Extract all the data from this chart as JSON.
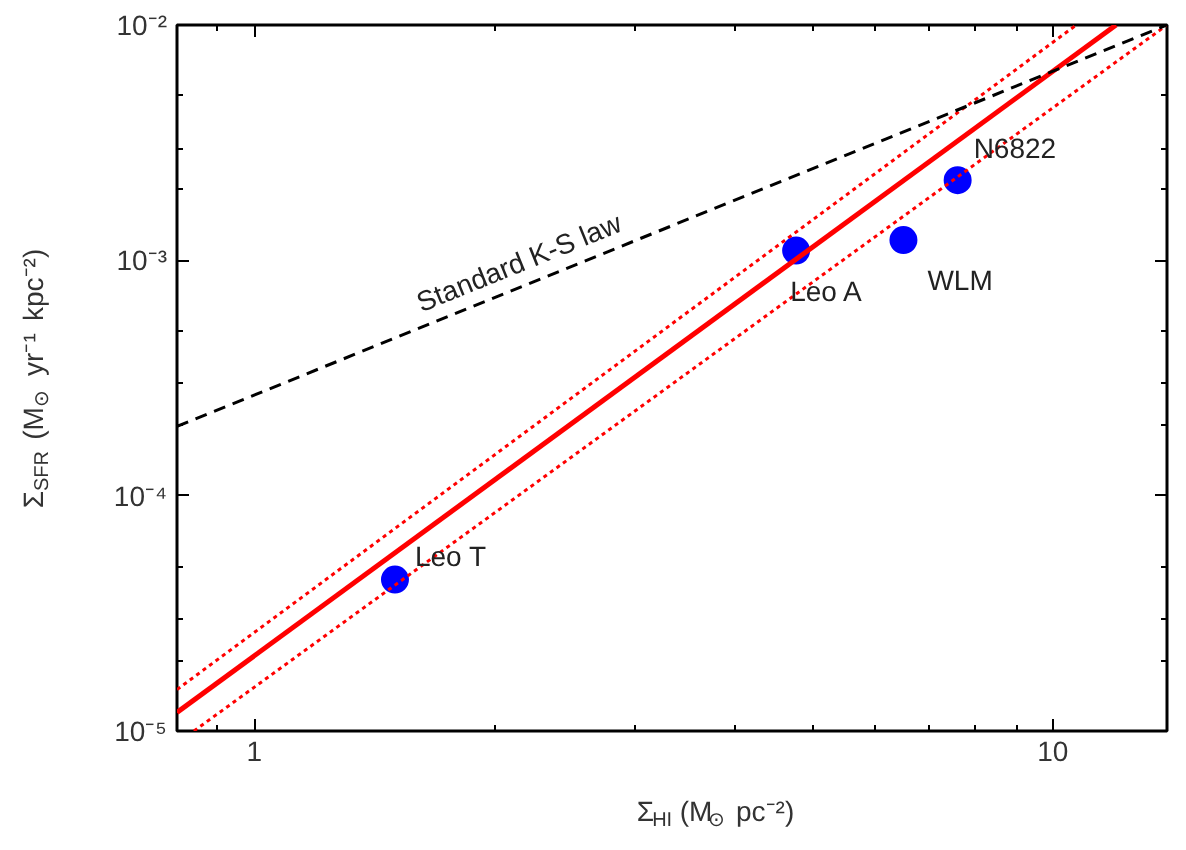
{
  "chart_data": {
    "type": "scatter",
    "xlabel": "Σ$_{HI}$ (M⊙ pc⁻²)",
    "ylabel": "Σ$_{SFR}$ (M⊙ yr⁻¹ kpc⁻²)",
    "log": "xy",
    "grid": false,
    "marker": "circle",
    "xlim": [
      0.8,
      13.9
    ],
    "ylim": [
      1e-05,
      0.01
    ],
    "xticks": [
      {
        "value": 0.8,
        "label": null
      },
      {
        "value": 0.9,
        "label": null
      },
      1,
      {
        "value": 2,
        "label": null
      },
      {
        "value": 3,
        "label": null
      },
      {
        "value": 4,
        "label": null
      },
      {
        "value": 5,
        "label": null
      },
      {
        "value": 6,
        "label": null
      },
      {
        "value": 7,
        "label": null
      },
      {
        "value": 8,
        "label": null
      },
      {
        "value": 9,
        "label": null
      },
      10
    ],
    "yticks": [
      {
        "value": 1e-05,
        "label": "10⁻⁵"
      },
      {
        "value": 2e-05,
        "label": null
      },
      {
        "value": 3e-05,
        "label": null
      },
      {
        "value": 5e-05,
        "label": null
      },
      {
        "value": 0.0001,
        "label": "10⁻⁴"
      },
      {
        "value": 0.0002,
        "label": null
      },
      {
        "value": 0.0003,
        "label": null
      },
      {
        "value": 0.0005,
        "label": null
      },
      {
        "value": 0.001,
        "label": "10⁻³"
      },
      {
        "value": 0.002,
        "label": null
      },
      {
        "value": 0.003,
        "label": null
      },
      {
        "value": 0.005,
        "label": null
      },
      {
        "value": 0.01,
        "label": "10⁻²"
      }
    ],
    "series": [
      {
        "color": "#0000ff",
        "x": [
          1.5,
          4.77,
          6.5,
          7.6
        ],
        "values": [
          4.4e-05,
          0.0011,
          0.00122,
          0.00219
        ]
      },
      {
        "type": "line",
        "marker": "none",
        "color": "#ff0000",
        "line_style": "solid",
        "x": [
          0.8,
          12.0
        ],
        "values": [
          1.2e-05,
          0.01
        ]
      },
      {
        "type": "line",
        "marker": "none",
        "color": "#ff0000",
        "line_style": "dotted",
        "x": [
          0.8,
          10.7
        ],
        "values": [
          1.5e-05,
          0.01
        ]
      },
      {
        "type": "line",
        "marker": "none",
        "color": "#ff0000",
        "line_style": "dotted",
        "x": [
          0.84,
          13.9
        ],
        "values": [
          1e-05,
          0.01
        ]
      },
      {
        "type": "line",
        "marker": "none",
        "color": "#000000",
        "line_style": "dashed",
        "x": [
          0.8,
          13.9
        ],
        "values": [
          0.000197,
          0.01
        ]
      }
    ],
    "annotations": [
      {
        "text": "Leo T",
        "x": 1.5,
        "y": 4.4e-05
      },
      {
        "text": "Leo A",
        "x": 4.77,
        "y": 0.0011
      },
      {
        "text": "WLM",
        "x": 6.5,
        "y": 0.00122
      },
      {
        "text": "N6822",
        "x": 7.6,
        "y": 0.00219
      },
      {
        "text": "Standard K-S law",
        "x": 2.2,
        "y": 0.00079
      }
    ]
  }
}
